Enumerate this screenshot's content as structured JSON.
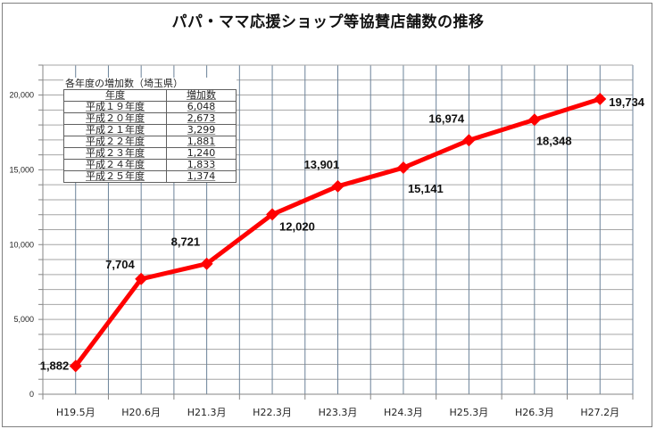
{
  "title": "パパ・ママ応援ショップ等協賛店舗数の推移",
  "chart_data": {
    "type": "line",
    "title": "パパ・ママ応援ショップ等協賛店舗数の推移",
    "xlabel": "",
    "ylabel": "",
    "categories": [
      "H19.5月",
      "H20.6月",
      "H21.3月",
      "H22.3月",
      "H23.3月",
      "H24.3月",
      "H25.3月",
      "H26.3月",
      "H27.2月"
    ],
    "series": [
      {
        "name": "協賛店舗数",
        "values": [
          1882,
          7704,
          8721,
          12020,
          13901,
          15141,
          16974,
          18348,
          19734
        ],
        "data_labels": [
          "1,882",
          "7,704",
          "8,721",
          "12,020",
          "13,901",
          "15,141",
          "16,974",
          "18,348",
          "19,734"
        ],
        "color": "#ff0000",
        "marker": "diamond"
      }
    ],
    "ylim": [
      0,
      22000
    ],
    "yticks": [
      0,
      5000,
      10000,
      15000,
      20000
    ],
    "ytick_labels": [
      "0",
      "5,000",
      "10,000",
      "15,000",
      "20,000"
    ],
    "minor_grid_step": 1000,
    "grid": true,
    "legend": "none"
  },
  "inset_table": {
    "caption": "各年度の増加数（埼玉県）",
    "headers": [
      "年度",
      "増加数"
    ],
    "rows": [
      [
        "平成１９年度",
        "6,048"
      ],
      [
        "平成２０年度",
        "2,673"
      ],
      [
        "平成２１年度",
        "3,299"
      ],
      [
        "平成２２年度",
        "1,881"
      ],
      [
        "平成２３年度",
        "1,240"
      ],
      [
        "平成２４年度",
        "1,833"
      ],
      [
        "平成２５年度",
        "1,374"
      ]
    ]
  },
  "colors": {
    "line": "#ff0000",
    "hgrid": "#a6a6a6",
    "vgrid": "#6b8299",
    "axis": "#868686"
  }
}
